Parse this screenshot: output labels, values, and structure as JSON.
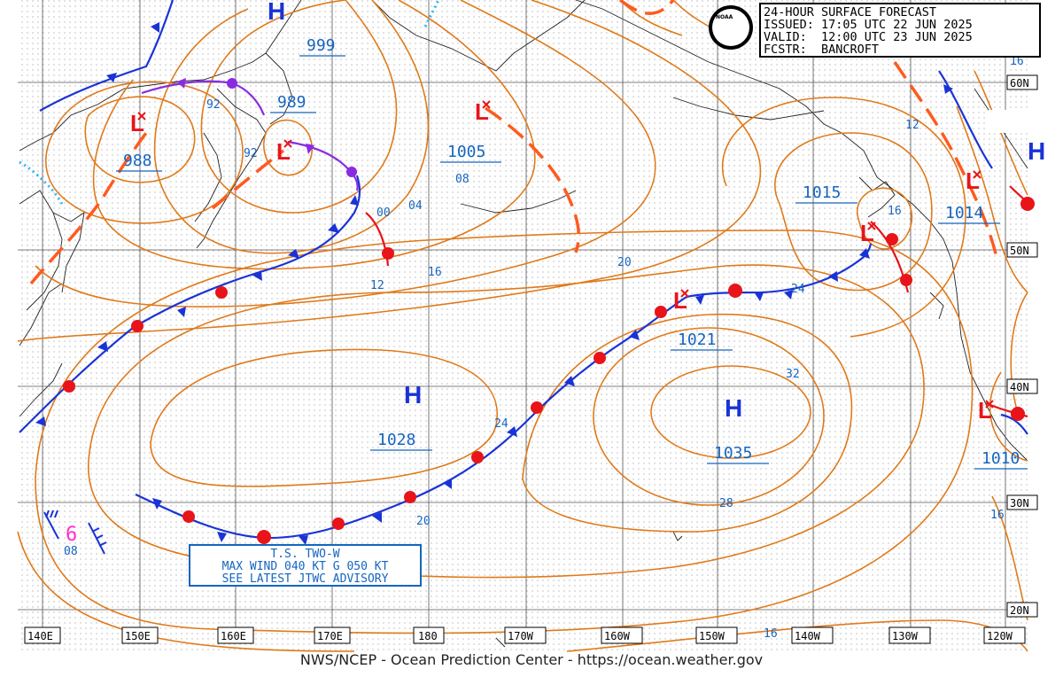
{
  "header": {
    "title": "24-HOUR SURFACE FORECAST",
    "issued": "ISSUED: 17:05 UTC 22 JUN 2025",
    "valid": "VALID:  12:00 UTC 23 JUN 2025",
    "forecaster": "FCSTR:  BANCROFT",
    "logo_text": "NOAA"
  },
  "footer": "NWS/NCEP - Ocean Prediction Center - https://ocean.weather.gov",
  "storm_advisory": {
    "line1": "T.S. TWO-W",
    "line2": "MAX WIND 040 KT G 050 KT",
    "line3": "SEE LATEST JTWC ADVISORY",
    "symbol": "6",
    "value": "08"
  },
  "longitudes": [
    "140E",
    "150E",
    "160E",
    "170E",
    "180",
    "170W",
    "160W",
    "150W",
    "140W",
    "130W",
    "120W"
  ],
  "latitudes": [
    "60N",
    "50N",
    "40N",
    "30N",
    "20N"
  ],
  "pressure_centers": [
    {
      "type": "H",
      "value": "999"
    },
    {
      "type": "L",
      "value": "989"
    },
    {
      "type": "L",
      "value": "988"
    },
    {
      "type": "L",
      "value": "1005"
    },
    {
      "type": "L",
      "value": "1015"
    },
    {
      "type": "L",
      "value": "1014"
    },
    {
      "type": "L",
      "value": "1021"
    },
    {
      "type": "H",
      "value": "1028"
    },
    {
      "type": "H",
      "value": "1035"
    },
    {
      "type": "L",
      "value": "1010"
    },
    {
      "type": "H",
      "value": ""
    }
  ],
  "isobar_labels": [
    "92",
    "92",
    "00",
    "04",
    "08",
    "12",
    "16",
    "20",
    "24",
    "28",
    "32",
    "20",
    "24",
    "16",
    "16",
    "12",
    "16",
    "16",
    "20"
  ],
  "colors": {
    "isobar": "#e07a1a",
    "trough": "#ff5a1f",
    "cold_front": "#1a33d6",
    "warm_front": "#e8141a",
    "occluded": "#8a2be2",
    "ice": "#29b6f6",
    "label": "#1565c0",
    "grid": "#333333"
  }
}
